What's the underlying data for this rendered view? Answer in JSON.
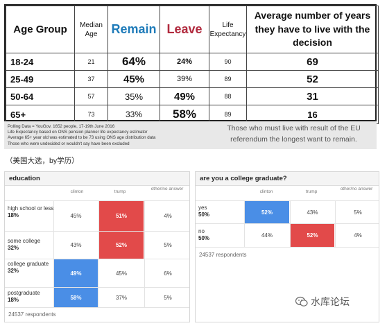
{
  "top_table": {
    "headers": {
      "age_group": "Age Group",
      "median_age": "Median Age",
      "remain": "Remain",
      "leave": "Leave",
      "life_expectancy": "Life Expectancy",
      "avg_years": "Average number of years they have to live with the decision"
    },
    "rows": [
      {
        "age": "18-24",
        "median": "21",
        "remain": "64%",
        "leave": "24%",
        "life": "90",
        "years": "69"
      },
      {
        "age": "25-49",
        "median": "37",
        "remain": "45%",
        "leave": "39%",
        "life": "89",
        "years": "52"
      },
      {
        "age": "50-64",
        "median": "57",
        "remain": "35%",
        "leave": "49%",
        "life": "88",
        "years": "31"
      },
      {
        "age": "65+",
        "median": "73",
        "remain": "33%",
        "leave": "58%",
        "life": "89",
        "years": "16"
      }
    ]
  },
  "notes": {
    "line1": "Polling Data = YouGov, 1652 people, 17-19th June 2016",
    "line2": "Life Expectancy based on ONS pension planner life expectancy estimator",
    "line3": "Average 65+ year old was estimated to be 73 using ONS age distribution data",
    "line4": "Those who were undecided or wouldn't say have been excluded",
    "quote": "Those who must live with result of the EU referendum the longest want to remain."
  },
  "caption": "（美国大选，by学历）",
  "education": {
    "title": "education",
    "cols": [
      "clinton",
      "trump",
      "other/no answer"
    ],
    "rows": [
      {
        "label": "high school or less",
        "pct": "18%",
        "clinton": "45%",
        "trump": "51%",
        "other": "4%"
      },
      {
        "label": "some college",
        "pct": "32%",
        "clinton": "43%",
        "trump": "52%",
        "other": "5%"
      },
      {
        "label": "college graduate",
        "pct": "32%",
        "clinton": "49%",
        "trump": "45%",
        "other": "6%"
      },
      {
        "label": "postgraduate",
        "pct": "18%",
        "clinton": "58%",
        "trump": "37%",
        "other": "5%"
      }
    ],
    "respondents": "24537 respondents"
  },
  "graduate": {
    "title": "are you a college graduate?",
    "cols": [
      "clinton",
      "trump",
      "other/no answer"
    ],
    "rows": [
      {
        "label": "yes",
        "pct": "50%",
        "clinton": "52%",
        "trump": "43%",
        "other": "5%"
      },
      {
        "label": "no",
        "pct": "50%",
        "clinton": "44%",
        "trump": "52%",
        "other": "4%"
      }
    ],
    "respondents": "24537 respondents"
  },
  "watermark": "水库论坛",
  "colors": {
    "remain": "#1e7bb9",
    "leave": "#b12a3e",
    "clinton_highlight": "#4a8ee6",
    "trump_highlight": "#e24a4a"
  }
}
